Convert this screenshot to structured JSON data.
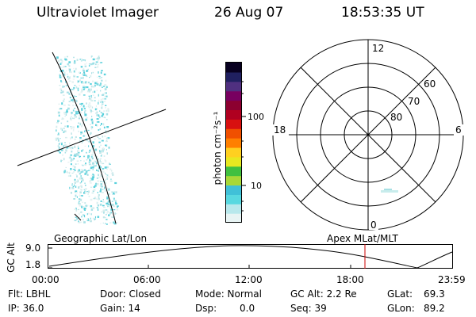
{
  "header": {
    "title": "Ultraviolet Imager",
    "date": "26 Aug 07",
    "time": "18:53:35 UT"
  },
  "colorbar": {
    "unit_label": "photon cm⁻²s⁻¹",
    "ticks": [
      "100",
      "10"
    ],
    "colors": [
      "#e8f4f4",
      "#b8e8ec",
      "#58d8e0",
      "#40c0d8",
      "#a8d838",
      "#40c040",
      "#e8e820",
      "#ffd020",
      "#ff8000",
      "#f05000",
      "#d81010",
      "#b00020",
      "#8c0030",
      "#780060",
      "#503080",
      "#202060",
      "#080020"
    ]
  },
  "polar": {
    "lat_labels": [
      "60",
      "70",
      "80"
    ],
    "mlt_labels": {
      "top": "12",
      "left": "18",
      "right": "6",
      "bottom": "0"
    }
  },
  "timeline": {
    "left_label": "Geographic Lat/Lon",
    "right_label": "Apex MLat/MLT",
    "y_axis_label": "GC Alt",
    "y_ticks": [
      "9.0",
      "1.8"
    ],
    "x_ticks": [
      "00:00",
      "06:00",
      "12:00",
      "18:00",
      "23:59"
    ],
    "marker_color": "#cc0000"
  },
  "info": {
    "row1": {
      "flt": "Flt: LBHL",
      "door": "Door: Closed",
      "mode": "Mode: Normal",
      "gcalt": "GC Alt: 2.2 Re",
      "glat_label": "GLat:",
      "glat_value": "69.3"
    },
    "row2": {
      "ip": "IP: 36.0",
      "gain": "Gain: 14",
      "dsp_label": "Dsp:",
      "dsp_value": "0.0",
      "seq": "Seq: 39",
      "glon_label": "GLon:",
      "glon_value": "89.2"
    }
  }
}
